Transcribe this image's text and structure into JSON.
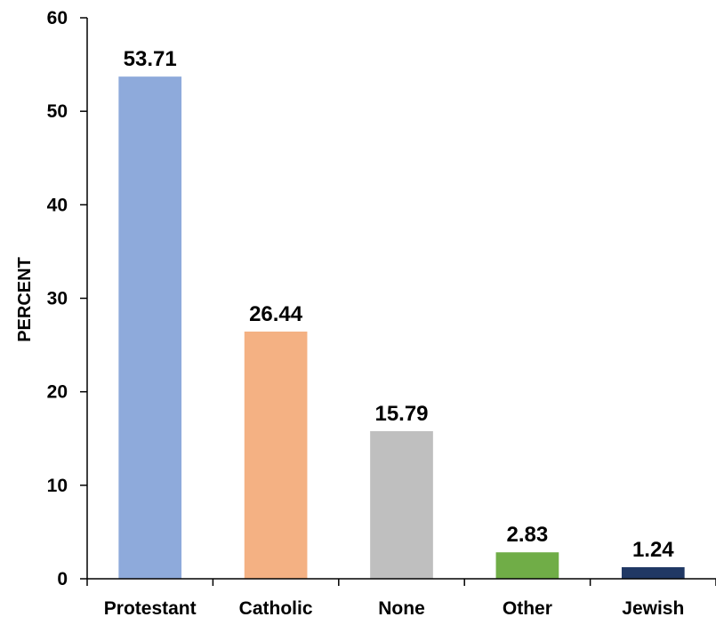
{
  "chart_data": {
    "type": "bar",
    "categories": [
      "Protestant",
      "Catholic",
      "None",
      "Other",
      "Jewish"
    ],
    "values": [
      53.71,
      26.44,
      15.79,
      2.83,
      1.24
    ],
    "data_labels": [
      "53.71",
      "26.44",
      "15.79",
      "2.83",
      "1.24"
    ],
    "colors": [
      "#8eaadb",
      "#f4b183",
      "#bfbfbf",
      "#70ad47",
      "#203864"
    ],
    "title": "",
    "xlabel": "",
    "ylabel": "PERCENT",
    "ylim": [
      0,
      60
    ],
    "yticks": [
      0,
      10,
      20,
      30,
      40,
      50,
      60
    ],
    "ytick_labels": [
      "0",
      "10",
      "20",
      "30",
      "40",
      "50",
      "60"
    ],
    "grid": false,
    "legend": "none"
  }
}
